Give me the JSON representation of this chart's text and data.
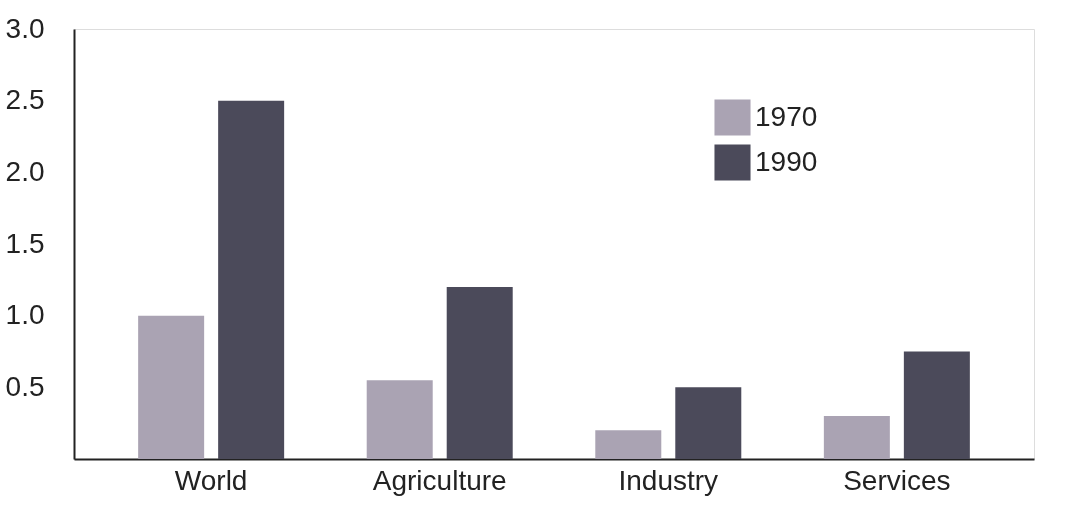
{
  "chart_data": {
    "type": "bar",
    "categories": [
      "World",
      "Agriculture",
      "Industry",
      "Services"
    ],
    "series": [
      {
        "name": "1970",
        "color": "#aaa3b3",
        "values": [
          1.0,
          0.55,
          0.2,
          0.3
        ]
      },
      {
        "name": "1990",
        "color": "#4b4a5a",
        "values": [
          2.5,
          1.2,
          0.5,
          0.75
        ]
      }
    ],
    "ylim": [
      0,
      3.0
    ],
    "yticks": [
      {
        "value": 0.5,
        "label": "0.5"
      },
      {
        "value": 1.0,
        "label": "1.0"
      },
      {
        "value": 1.5,
        "label": "1.5"
      },
      {
        "value": 2.0,
        "label": "2.0"
      },
      {
        "value": 2.5,
        "label": "2.5"
      },
      {
        "value": 3.0,
        "label": "3.0"
      }
    ],
    "grid": false,
    "legend": "top right"
  }
}
